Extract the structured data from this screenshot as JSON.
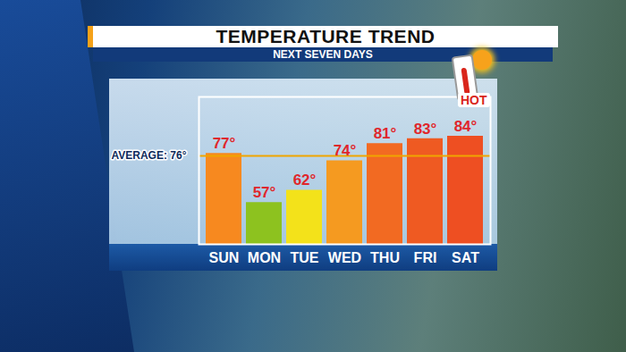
{
  "chart_data": {
    "type": "bar",
    "title": "TEMPERATURE TREND",
    "subtitle": "NEXT SEVEN DAYS",
    "categories": [
      "SUN",
      "MON",
      "TUE",
      "WED",
      "THU",
      "FRI",
      "SAT"
    ],
    "values": [
      77,
      57,
      62,
      74,
      81,
      83,
      84
    ],
    "value_labels": [
      "77°",
      "57°",
      "62°",
      "74°",
      "81°",
      "83°",
      "84°"
    ],
    "colors": [
      "#f7891f",
      "#8dc21f",
      "#f3e21a",
      "#f59a20",
      "#f26a22",
      "#ef5a22",
      "#ee4f22"
    ],
    "ylim": [
      40,
      100
    ],
    "yticks": [],
    "grid": false,
    "data_labels": true,
    "tick_labels": "x",
    "annotations": [
      {
        "y": 76,
        "text": "AVERAGE: 76°"
      },
      {
        "text": "HOT"
      }
    ]
  }
}
